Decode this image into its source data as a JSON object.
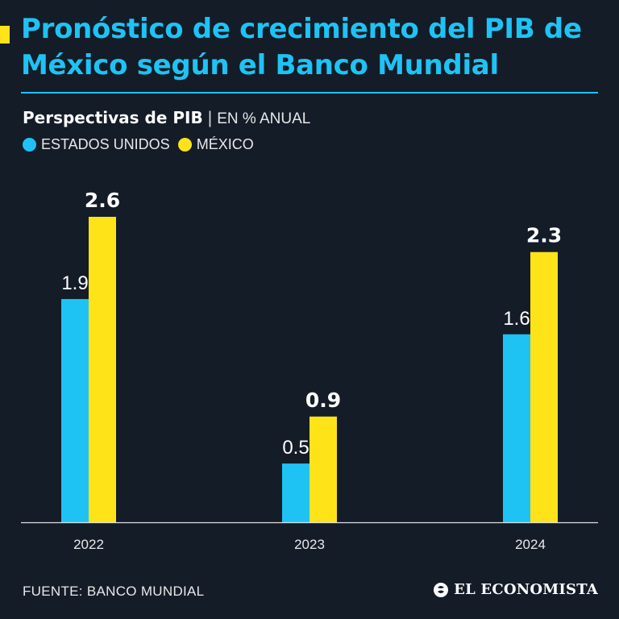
{
  "header": {
    "title": "Pronóstico de crecimiento del PIB de México según el Banco Mundial"
  },
  "subtitle": {
    "main": "Perspectivas de PIB",
    "separator": "|",
    "unit": "EN % ANUAL"
  },
  "colors": {
    "background": "#141c28",
    "usa": "#1ec3f4",
    "mexico": "#ffe319",
    "axis": "#e0e0e0"
  },
  "chart_data": {
    "type": "bar",
    "title": "Perspectivas de PIB",
    "ylabel": "EN % ANUAL",
    "xlabel": "",
    "categories": [
      "2022",
      "2023",
      "2024"
    ],
    "series": [
      {
        "name": "ESTADOS UNIDOS",
        "values": [
          1.9,
          0.5,
          1.6
        ],
        "labels": [
          "1.9",
          "0.5",
          "1.6"
        ]
      },
      {
        "name": "MÉXICO",
        "values": [
          2.6,
          0.9,
          2.3
        ],
        "labels": [
          "2.6",
          "0.9",
          "2.3"
        ]
      }
    ],
    "ylim": [
      0,
      2.6
    ],
    "grid": false,
    "legend": "top-left"
  },
  "footer": {
    "source": "FUENTE: BANCO MUNDIAL",
    "brand": "EL ECONOMISTA",
    "brand_icon": "el-economista-logo-icon"
  }
}
